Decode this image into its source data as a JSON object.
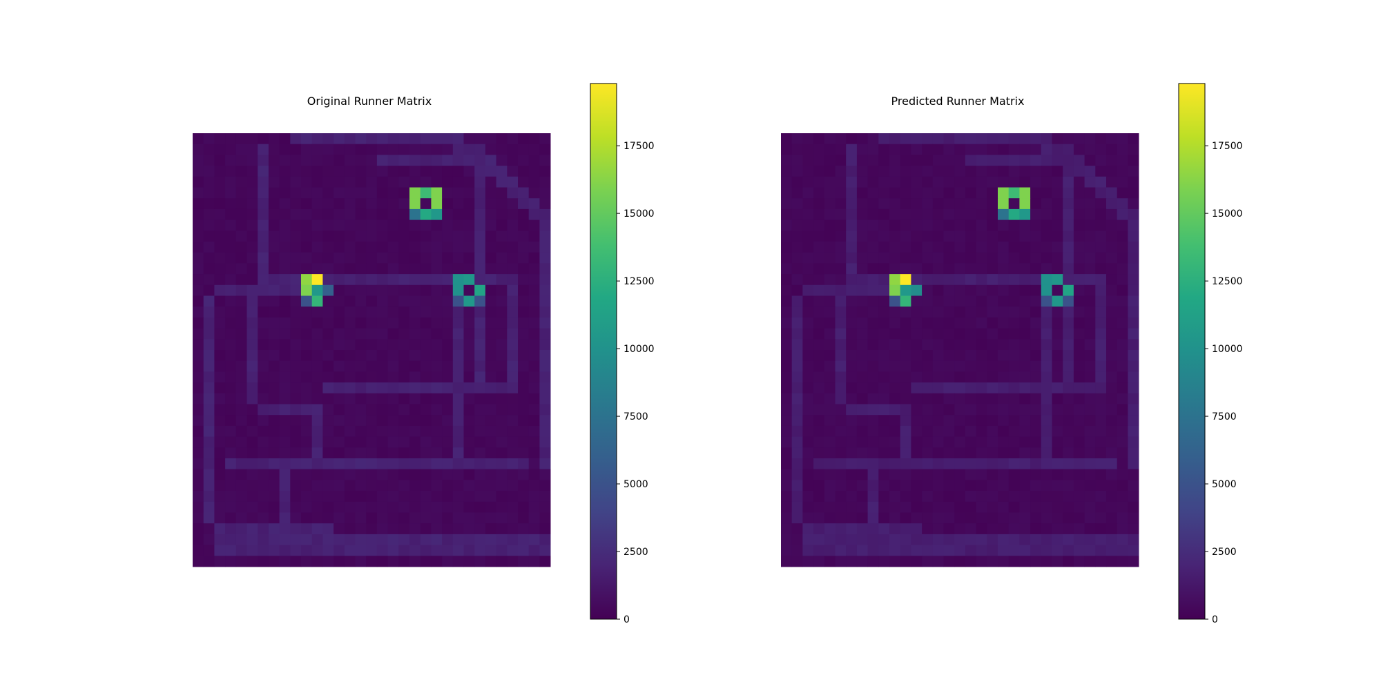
{
  "chart_data": [
    {
      "type": "heatmap",
      "title": "Original Runner Matrix",
      "rows": 40,
      "cols": 33,
      "value_range": [
        0,
        19800
      ],
      "colormap": "viridis",
      "colorbar_ticks": [
        "0",
        "2500",
        "5000",
        "7500",
        "10000",
        "12500",
        "15000",
        "17500"
      ],
      "colorbar_tick_values": [
        0,
        2500,
        5000,
        7500,
        10000,
        12500,
        15000,
        17500
      ],
      "background_value": 300,
      "track_value": 1800,
      "track_segments": [
        [
          0,
          9,
          0,
          24
        ],
        [
          1,
          24,
          1,
          26
        ],
        [
          2,
          26,
          2,
          27
        ],
        [
          3,
          27,
          3,
          28
        ],
        [
          4,
          28,
          4,
          29
        ],
        [
          5,
          29,
          5,
          30
        ],
        [
          6,
          30,
          6,
          31
        ],
        [
          7,
          31,
          7,
          32
        ],
        [
          8,
          32,
          30,
          32
        ],
        [
          1,
          6,
          13,
          6
        ],
        [
          2,
          17,
          2,
          26
        ],
        [
          3,
          26,
          23,
          26
        ],
        [
          13,
          6,
          13,
          29
        ],
        [
          13,
          24,
          23,
          24
        ],
        [
          14,
          24,
          30,
          24
        ],
        [
          13,
          29,
          23,
          29
        ],
        [
          14,
          2,
          14,
          10
        ],
        [
          15,
          1,
          35,
          1
        ],
        [
          14,
          5,
          24,
          5
        ],
        [
          23,
          12,
          23,
          29
        ],
        [
          25,
          6,
          25,
          11
        ],
        [
          25,
          11,
          30,
          11
        ],
        [
          30,
          3,
          30,
          30
        ],
        [
          30,
          8,
          37,
          8
        ],
        [
          36,
          2,
          36,
          12
        ],
        [
          37,
          2,
          38,
          32
        ]
      ],
      "hot_cells": [
        [
          5,
          20,
          16000
        ],
        [
          5,
          21,
          13500
        ],
        [
          5,
          22,
          16000
        ],
        [
          6,
          20,
          16000
        ],
        [
          6,
          21,
          400
        ],
        [
          6,
          22,
          16000
        ],
        [
          7,
          20,
          7500
        ],
        [
          7,
          21,
          12000
        ],
        [
          7,
          22,
          10500
        ],
        [
          13,
          10,
          16500
        ],
        [
          13,
          11,
          19800
        ],
        [
          14,
          10,
          16000
        ],
        [
          14,
          11,
          10500
        ],
        [
          14,
          12,
          6000
        ],
        [
          15,
          10,
          5000
        ],
        [
          15,
          11,
          13000
        ],
        [
          13,
          24,
          10000
        ],
        [
          13,
          25,
          10500
        ],
        [
          14,
          24,
          10000
        ],
        [
          14,
          25,
          400
        ],
        [
          14,
          26,
          11500
        ],
        [
          15,
          24,
          5000
        ],
        [
          15,
          25,
          10500
        ],
        [
          15,
          26,
          5000
        ]
      ]
    },
    {
      "type": "heatmap",
      "title": "Predicted Runner Matrix",
      "rows": 40,
      "cols": 33,
      "value_range": [
        0,
        19800
      ],
      "colormap": "viridis",
      "colorbar_ticks": [
        "0",
        "2500",
        "5000",
        "7500",
        "10000",
        "12500",
        "15000",
        "17500"
      ],
      "colorbar_tick_values": [
        0,
        2500,
        5000,
        7500,
        10000,
        12500,
        15000,
        17500
      ],
      "background_value": 300,
      "track_value": 1600,
      "track_segments": [
        [
          0,
          9,
          0,
          24
        ],
        [
          1,
          24,
          1,
          26
        ],
        [
          2,
          26,
          2,
          27
        ],
        [
          3,
          27,
          3,
          28
        ],
        [
          4,
          28,
          4,
          29
        ],
        [
          5,
          29,
          5,
          30
        ],
        [
          6,
          30,
          6,
          31
        ],
        [
          7,
          31,
          7,
          32
        ],
        [
          8,
          32,
          30,
          32
        ],
        [
          1,
          6,
          13,
          6
        ],
        [
          2,
          17,
          2,
          26
        ],
        [
          3,
          26,
          23,
          26
        ],
        [
          13,
          6,
          13,
          29
        ],
        [
          13,
          24,
          23,
          24
        ],
        [
          14,
          24,
          30,
          24
        ],
        [
          13,
          29,
          23,
          29
        ],
        [
          14,
          2,
          14,
          10
        ],
        [
          15,
          1,
          35,
          1
        ],
        [
          14,
          5,
          24,
          5
        ],
        [
          23,
          12,
          23,
          29
        ],
        [
          25,
          6,
          25,
          11
        ],
        [
          25,
          11,
          30,
          11
        ],
        [
          30,
          3,
          30,
          30
        ],
        [
          30,
          8,
          37,
          8
        ],
        [
          36,
          2,
          36,
          12
        ],
        [
          37,
          2,
          38,
          32
        ]
      ],
      "hot_cells": [
        [
          5,
          20,
          16000
        ],
        [
          5,
          21,
          13500
        ],
        [
          5,
          22,
          16000
        ],
        [
          6,
          20,
          16000
        ],
        [
          6,
          21,
          400
        ],
        [
          6,
          22,
          16000
        ],
        [
          7,
          20,
          7500
        ],
        [
          7,
          21,
          12000
        ],
        [
          7,
          22,
          10500
        ],
        [
          13,
          10,
          16500
        ],
        [
          13,
          11,
          19800
        ],
        [
          14,
          10,
          16000
        ],
        [
          14,
          11,
          10500
        ],
        [
          14,
          12,
          9500
        ],
        [
          15,
          10,
          5000
        ],
        [
          15,
          11,
          13000
        ],
        [
          13,
          24,
          10000
        ],
        [
          13,
          25,
          10500
        ],
        [
          14,
          24,
          10000
        ],
        [
          14,
          25,
          400
        ],
        [
          14,
          26,
          11500
        ],
        [
          15,
          24,
          5000
        ],
        [
          15,
          25,
          10500
        ],
        [
          15,
          26,
          5000
        ]
      ]
    }
  ]
}
